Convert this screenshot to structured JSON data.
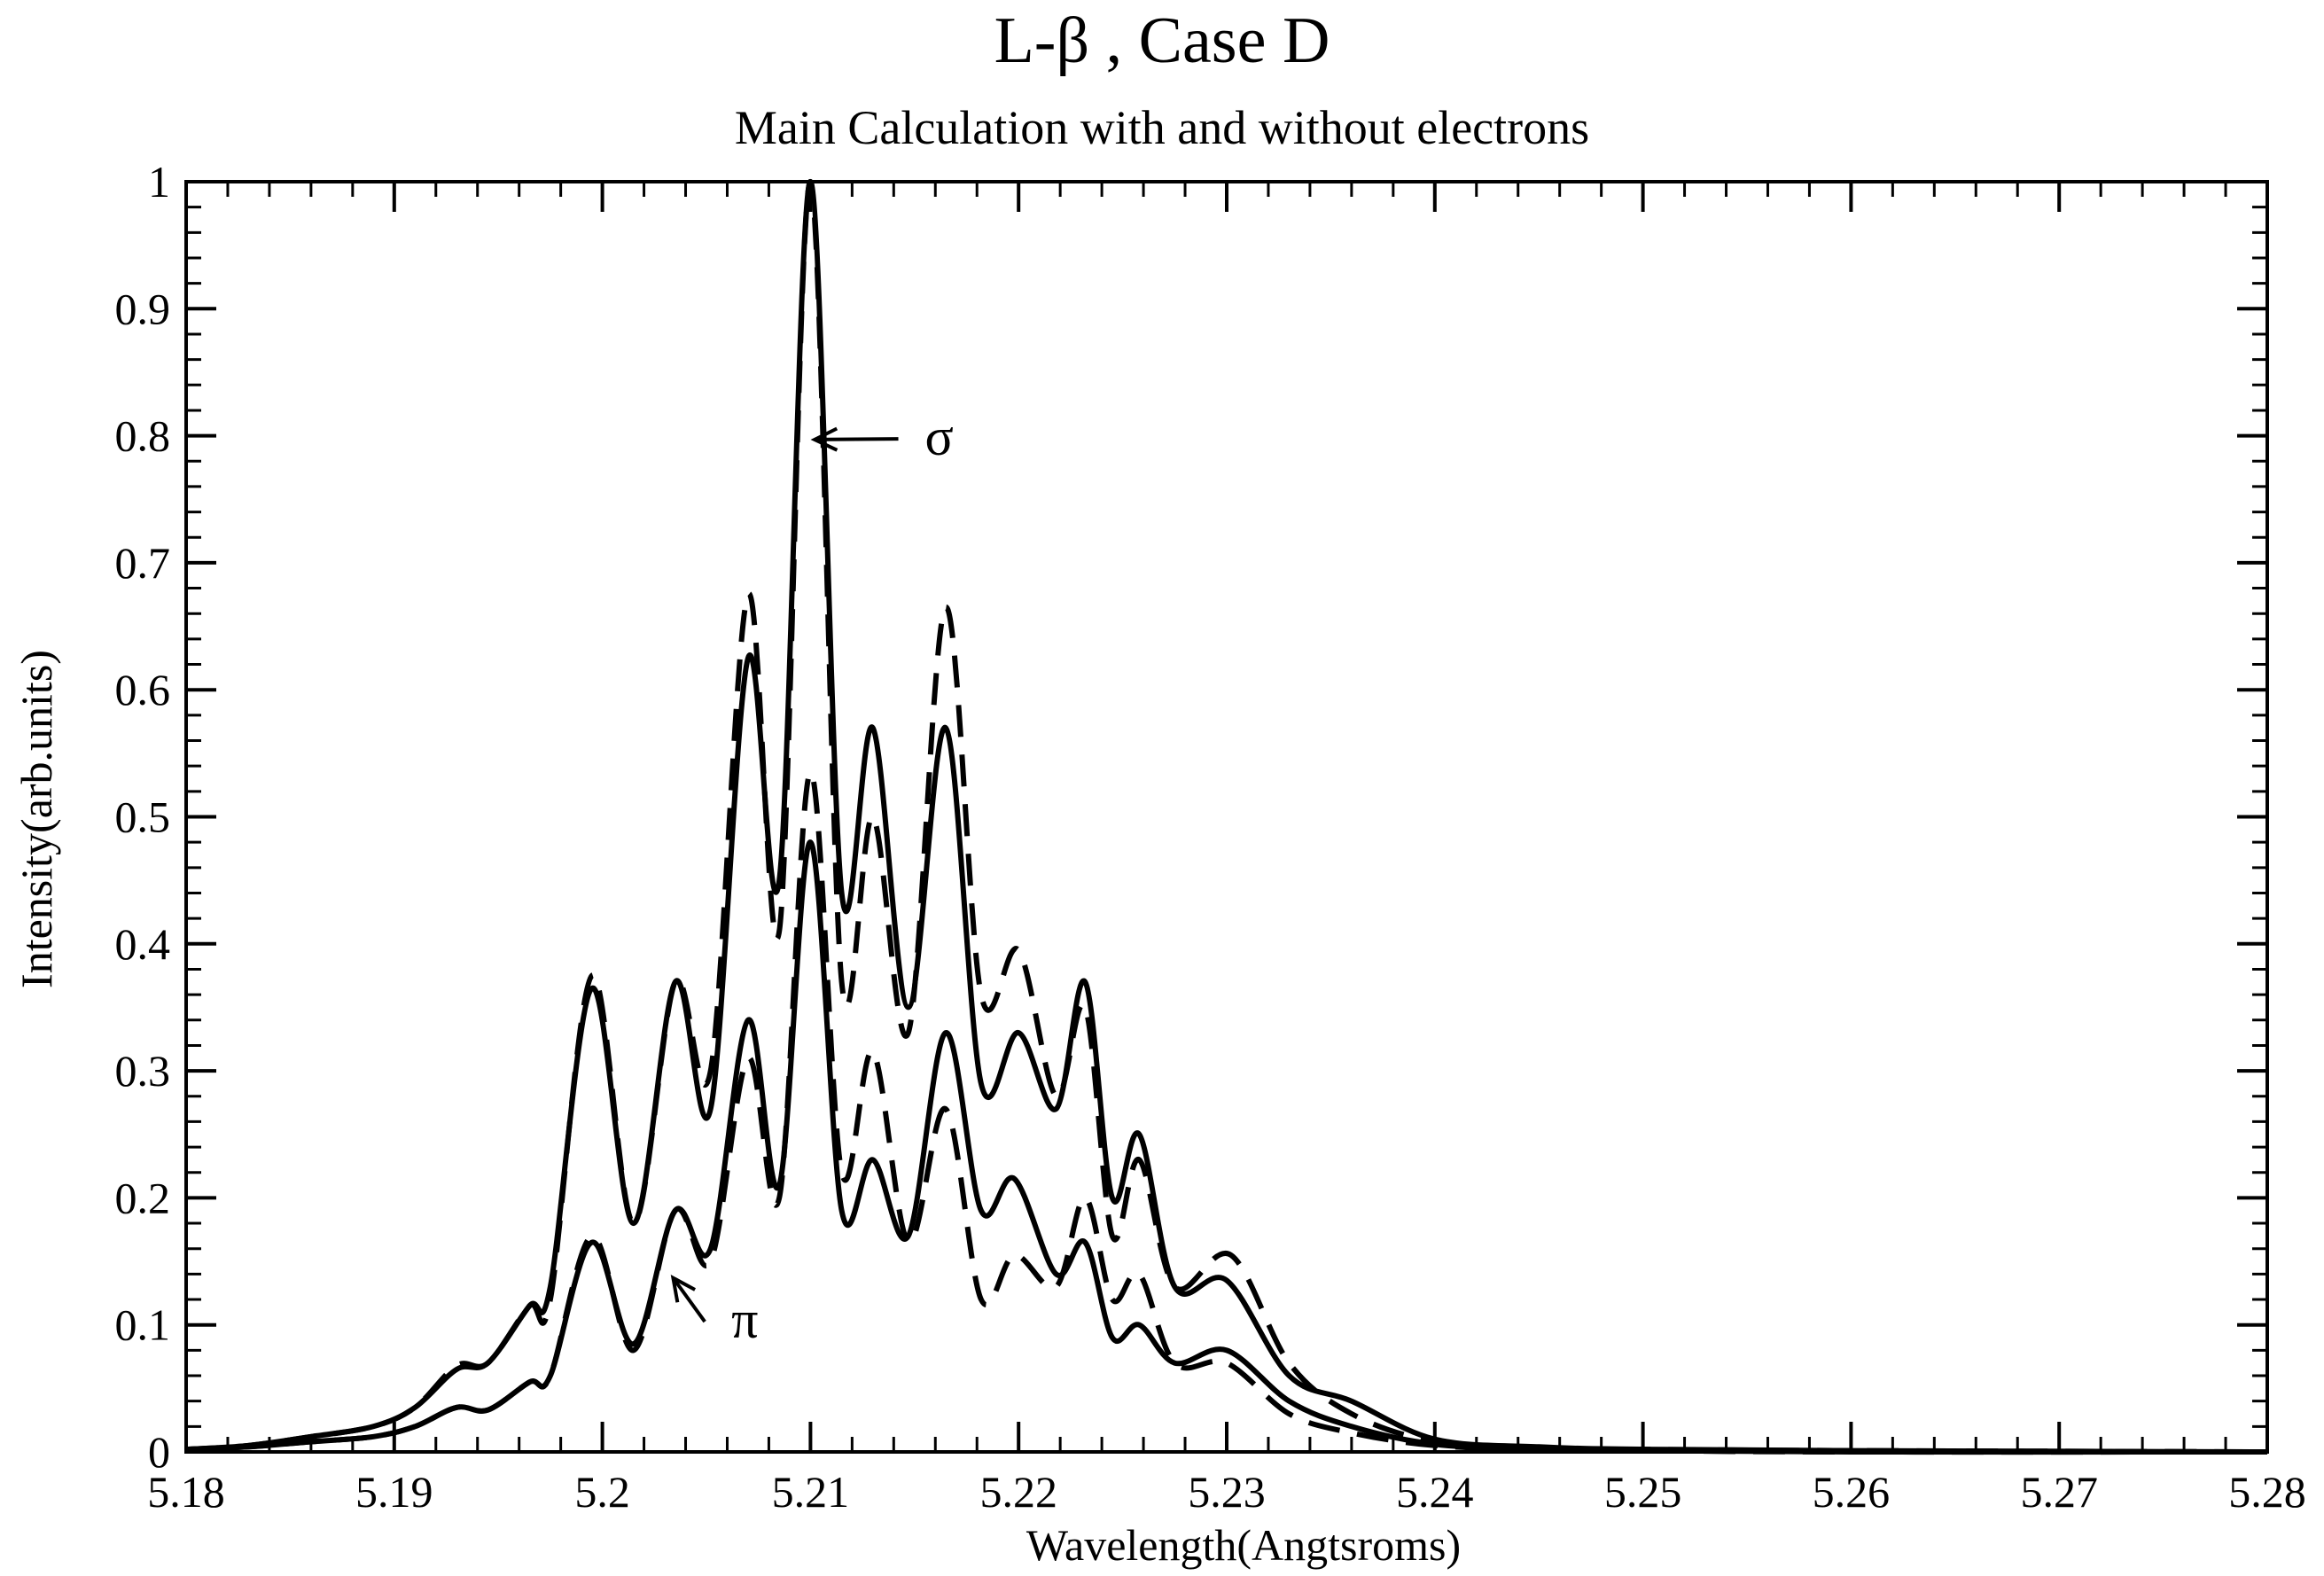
{
  "chart_data": {
    "type": "line",
    "title": "L-β , Case D",
    "subtitle": "Main Calculation with and without electrons",
    "xlabel": "Wavelength(Angtsroms)",
    "ylabel": "Intensity(arb.units)",
    "xlim": [
      5.18,
      5.28
    ],
    "ylim": [
      0,
      1
    ],
    "xticks": [
      "5.18",
      "5.19",
      "5.2",
      "5.21",
      "5.22",
      "5.23",
      "5.24",
      "5.25",
      "5.26",
      "5.27",
      "5.28"
    ],
    "yticks": [
      "0",
      "0.1",
      "0.2",
      "0.3",
      "0.4",
      "0.5",
      "0.6",
      "0.7",
      "0.8",
      "0.9",
      "1"
    ],
    "grid": false,
    "legend": "none",
    "annotations": [
      {
        "text": "σ",
        "x": 5.2155,
        "y": 0.785,
        "arrow_to": [
          5.2102,
          0.797
        ]
      },
      {
        "text": "π",
        "x": 5.2062,
        "y": 0.09,
        "arrow_to": [
          5.2034,
          0.137
        ]
      }
    ],
    "series": [
      {
        "style": "solid",
        "x": [
          5.18,
          5.183,
          5.186,
          5.189,
          5.191,
          5.193,
          5.1945,
          5.1965,
          5.1975,
          5.1995,
          5.2015,
          5.2035,
          5.2052,
          5.207,
          5.2085,
          5.21,
          5.2115,
          5.213,
          5.2147,
          5.2165,
          5.2182,
          5.22,
          5.2218,
          5.2232,
          5.2245,
          5.2258,
          5.2275,
          5.23,
          5.233,
          5.236,
          5.24,
          5.245,
          5.25,
          5.26,
          5.28
        ],
        "y": [
          0.002,
          0.005,
          0.012,
          0.02,
          0.035,
          0.065,
          0.07,
          0.115,
          0.13,
          0.365,
          0.18,
          0.37,
          0.27,
          0.625,
          0.45,
          1.0,
          0.44,
          0.57,
          0.35,
          0.57,
          0.29,
          0.33,
          0.27,
          0.37,
          0.2,
          0.25,
          0.13,
          0.135,
          0.06,
          0.04,
          0.01,
          0.004,
          0.002,
          0.001,
          0.0
        ]
      },
      {
        "style": "dashed",
        "x": [
          5.18,
          5.183,
          5.186,
          5.189,
          5.191,
          5.193,
          5.1945,
          5.1965,
          5.1975,
          5.1995,
          5.2015,
          5.2035,
          5.2052,
          5.207,
          5.2085,
          5.21,
          5.2115,
          5.213,
          5.2147,
          5.2165,
          5.2182,
          5.22,
          5.2218,
          5.2232,
          5.2245,
          5.2258,
          5.2275,
          5.2302,
          5.233,
          5.236,
          5.24,
          5.245,
          5.25,
          5.26,
          5.28
        ],
        "y": [
          0.002,
          0.005,
          0.012,
          0.02,
          0.035,
          0.068,
          0.07,
          0.115,
          0.12,
          0.375,
          0.18,
          0.37,
          0.3,
          0.675,
          0.41,
          1.0,
          0.37,
          0.5,
          0.33,
          0.665,
          0.36,
          0.395,
          0.28,
          0.35,
          0.17,
          0.23,
          0.13,
          0.155,
          0.07,
          0.03,
          0.008,
          0.003,
          0.002,
          0.001,
          0.0
        ]
      },
      {
        "style": "solid",
        "x": [
          5.18,
          5.183,
          5.186,
          5.189,
          5.191,
          5.193,
          5.1945,
          5.1965,
          5.1975,
          5.1995,
          5.2015,
          5.2035,
          5.2052,
          5.207,
          5.2085,
          5.21,
          5.2115,
          5.213,
          5.2147,
          5.2165,
          5.2182,
          5.2198,
          5.2218,
          5.2232,
          5.2245,
          5.2258,
          5.2275,
          5.23,
          5.233,
          5.236,
          5.24,
          5.245,
          5.25,
          5.26,
          5.28
        ],
        "y": [
          0.002,
          0.004,
          0.008,
          0.012,
          0.02,
          0.035,
          0.033,
          0.055,
          0.06,
          0.165,
          0.085,
          0.19,
          0.16,
          0.34,
          0.21,
          0.48,
          0.19,
          0.23,
          0.17,
          0.33,
          0.19,
          0.215,
          0.14,
          0.165,
          0.09,
          0.1,
          0.07,
          0.08,
          0.04,
          0.02,
          0.006,
          0.002,
          0.001,
          0.0,
          0.0
        ]
      },
      {
        "style": "dashed",
        "x": [
          5.18,
          5.183,
          5.186,
          5.189,
          5.191,
          5.193,
          5.1945,
          5.1965,
          5.1975,
          5.1995,
          5.2015,
          5.2035,
          5.2052,
          5.207,
          5.2085,
          5.21,
          5.2115,
          5.213,
          5.2147,
          5.2165,
          5.2182,
          5.2198,
          5.2218,
          5.2232,
          5.2245,
          5.2258,
          5.2275,
          5.23,
          5.233,
          5.236,
          5.24,
          5.245,
          5.25,
          5.26,
          5.28
        ],
        "y": [
          0.002,
          0.004,
          0.008,
          0.012,
          0.02,
          0.035,
          0.033,
          0.055,
          0.06,
          0.17,
          0.08,
          0.19,
          0.15,
          0.31,
          0.2,
          0.535,
          0.22,
          0.315,
          0.165,
          0.27,
          0.12,
          0.155,
          0.13,
          0.2,
          0.12,
          0.14,
          0.07,
          0.07,
          0.03,
          0.015,
          0.005,
          0.002,
          0.001,
          0.0,
          0.0
        ]
      }
    ]
  }
}
